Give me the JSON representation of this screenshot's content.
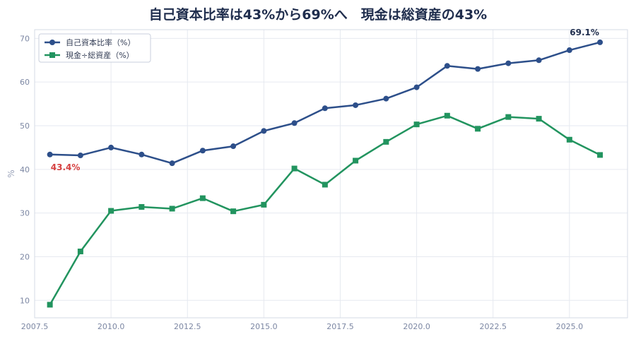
{
  "chart_data": {
    "type": "line",
    "title": "自己資本比率は43%から69%へ　現金は総資産の43%",
    "xlabel": "",
    "ylabel": "%",
    "x": [
      2008,
      2009,
      2010,
      2011,
      2012,
      2013,
      2014,
      2015,
      2016,
      2017,
      2018,
      2019,
      2020,
      2021,
      2022,
      2023,
      2024,
      2025,
      2026
    ],
    "xlim": [
      2007.5,
      2026.9
    ],
    "ylim": [
      6,
      72
    ],
    "x_ticks": [
      2007.5,
      2010.0,
      2012.5,
      2015.0,
      2017.5,
      2020.0,
      2022.5,
      2025.0
    ],
    "x_tick_labels": [
      "2007.5",
      "2010.0",
      "2012.5",
      "2015.0",
      "2017.5",
      "2020.0",
      "2022.5",
      "2025.0"
    ],
    "y_ticks": [
      10,
      20,
      30,
      40,
      50,
      60,
      70
    ],
    "y_tick_labels": [
      "10",
      "20",
      "30",
      "40",
      "50",
      "60",
      "70"
    ],
    "grid": true,
    "legend_position": "top-left",
    "series": [
      {
        "name": "自己資本比率（%）",
        "color": "#2d4f8a",
        "marker": "circle",
        "values": [
          43.4,
          43.2,
          45.0,
          43.4,
          41.4,
          44.3,
          45.3,
          48.8,
          50.6,
          54.0,
          54.7,
          56.2,
          58.8,
          63.7,
          63.0,
          64.3,
          65.0,
          67.3,
          69.1
        ]
      },
      {
        "name": "現金÷総資産（%）",
        "color": "#22945f",
        "marker": "square",
        "values": [
          9.0,
          21.2,
          30.5,
          31.4,
          31.0,
          33.4,
          30.4,
          31.9,
          40.2,
          36.5,
          42.0,
          46.3,
          50.3,
          52.3,
          49.3,
          52.0,
          51.6,
          46.8,
          43.3
        ]
      }
    ],
    "annotations": [
      {
        "text": "43.4%",
        "series": 0,
        "index": 0,
        "color": "#d64040",
        "placement": "below"
      },
      {
        "text": "69.1%",
        "series": 0,
        "index": 18,
        "color": "#1f2d4d",
        "placement": "above"
      }
    ]
  }
}
